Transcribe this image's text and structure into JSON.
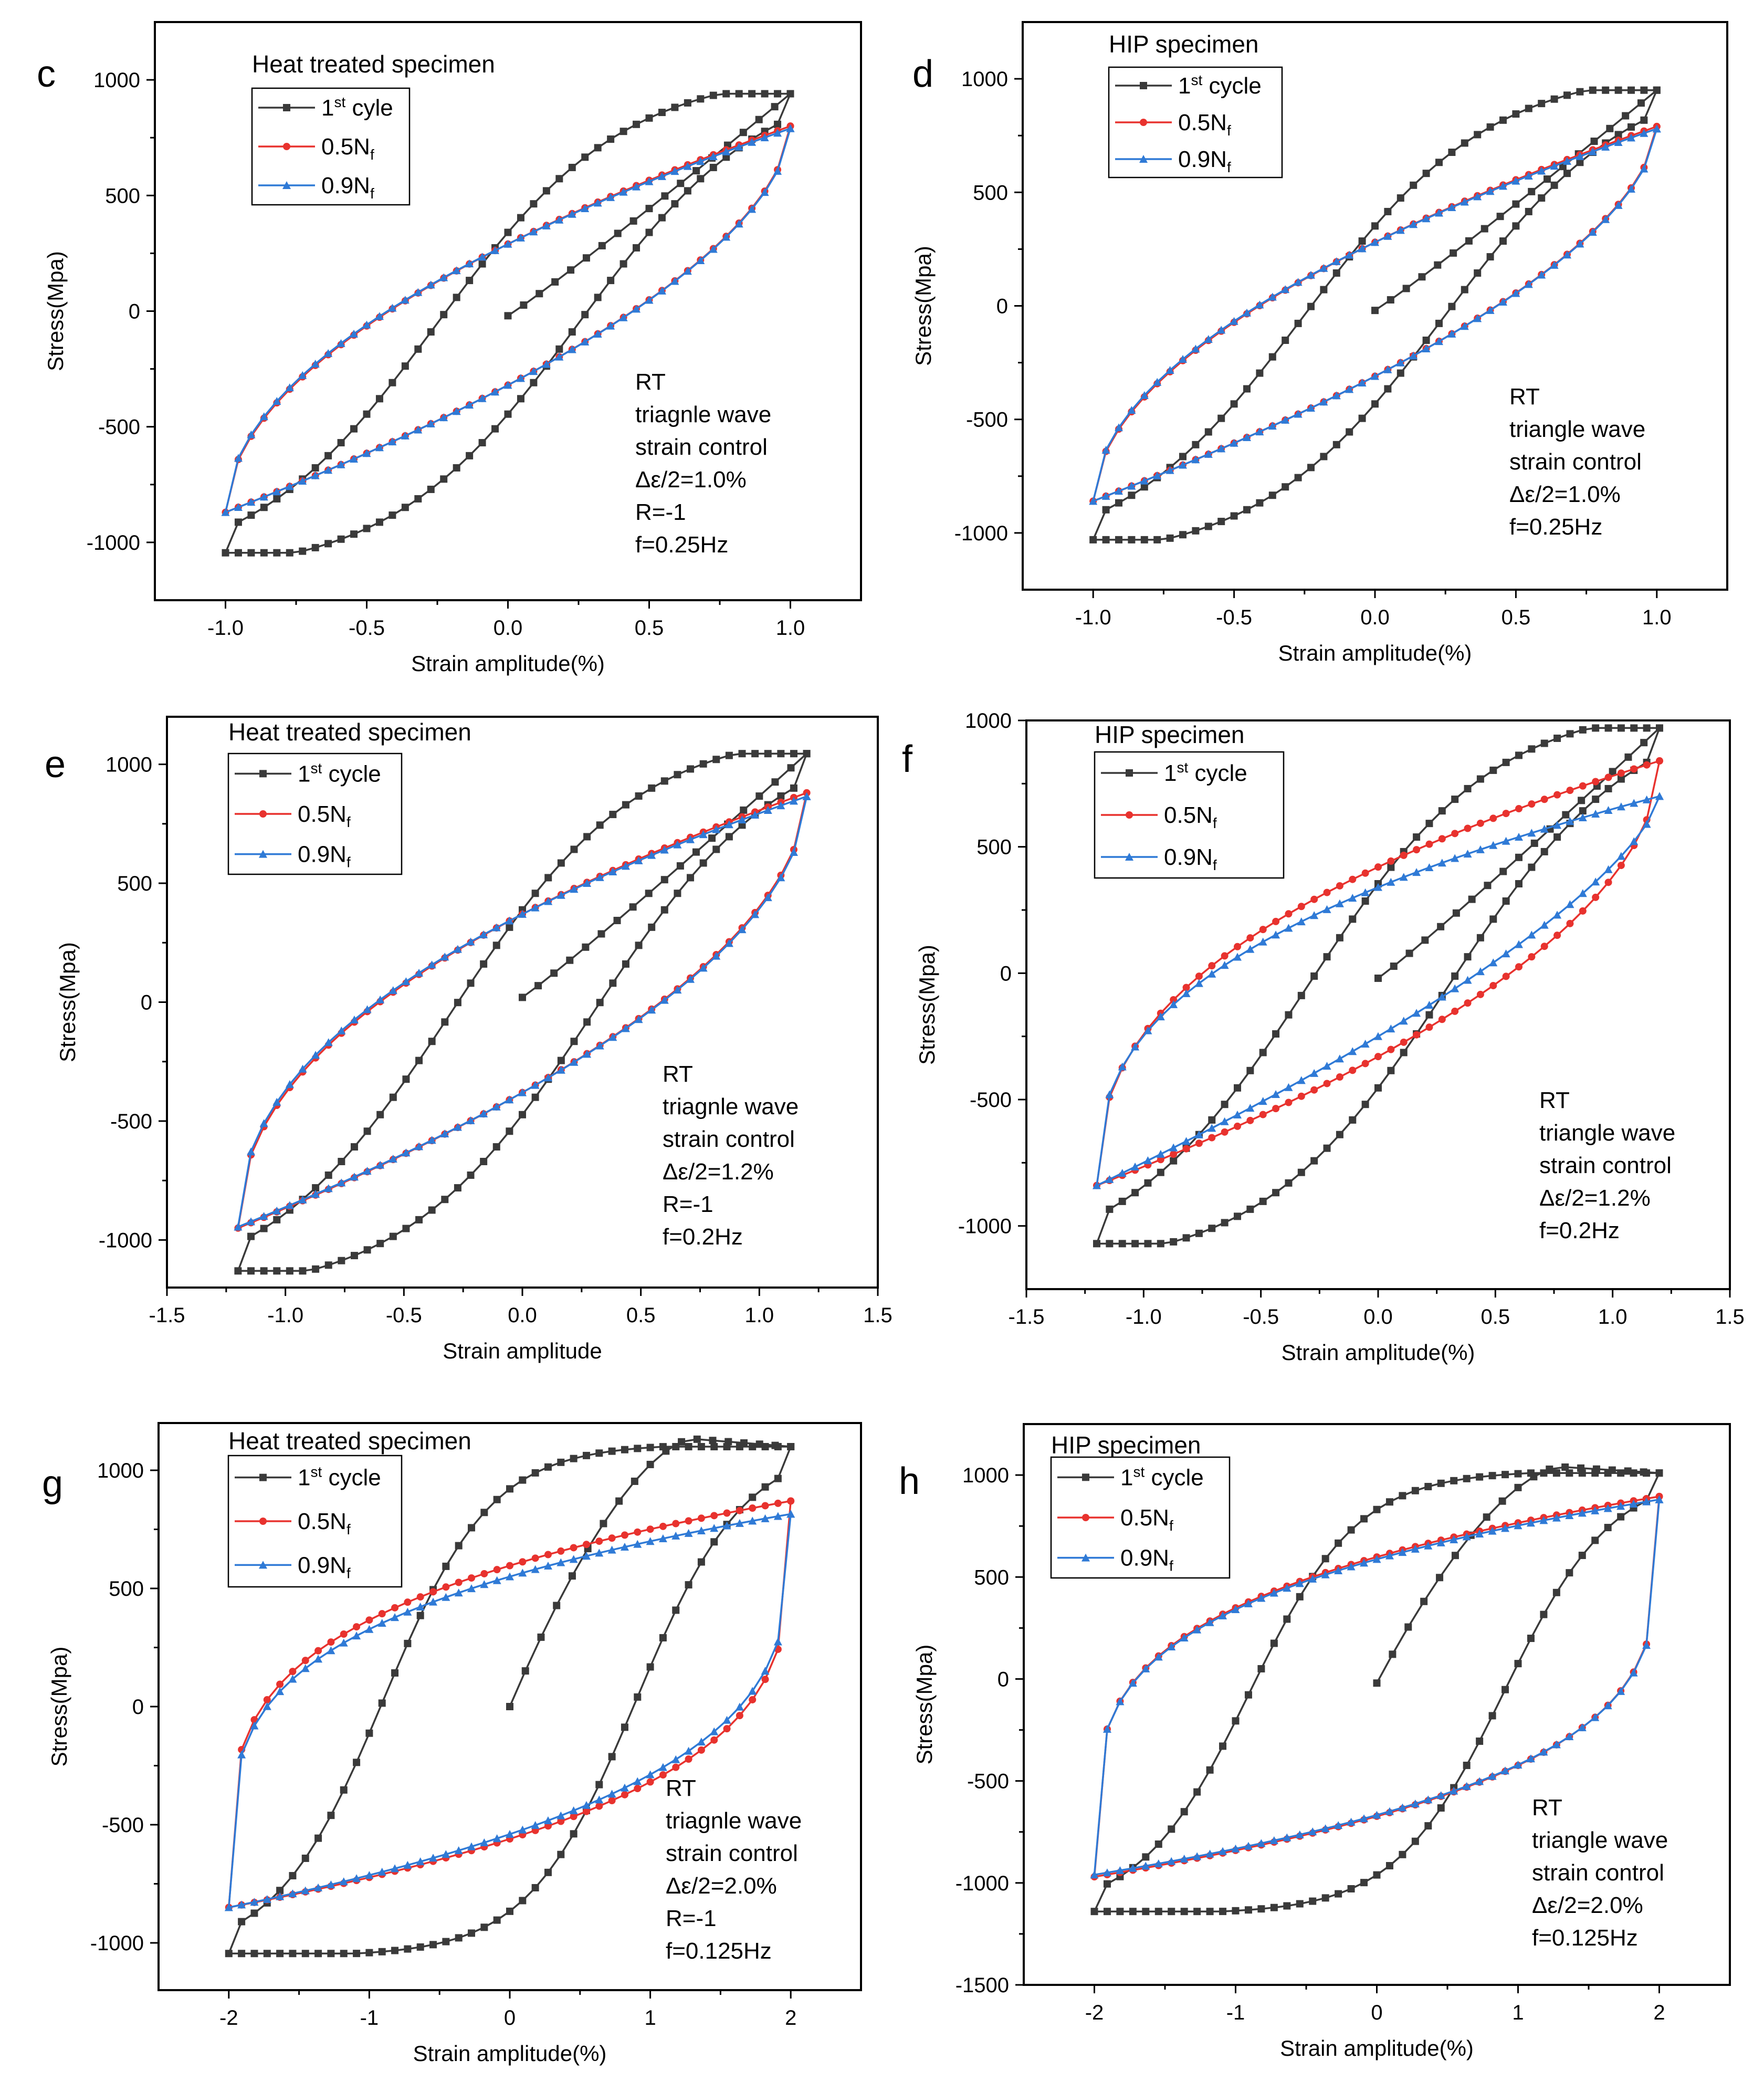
{
  "colors": {
    "cycle1": "#3a3a3a",
    "half": "#e8322e",
    "ninety": "#2f7ad6"
  },
  "chart_data": [
    {
      "type": "line",
      "panel": "c",
      "title": "Heat treated specimen",
      "xlabel": "Strain amplitude(%)",
      "ylabel": "Stress(Mpa)",
      "xlim": [
        -1.25,
        1.25
      ],
      "ylim": [
        -1250,
        1250
      ],
      "xticks": [
        "-1.0",
        "-0.5",
        "0.0",
        "0.5",
        "1.0"
      ],
      "xtick_values": [
        -1,
        -0.5,
        0,
        0.5,
        1
      ],
      "yticks": [
        "-1000",
        "-500",
        "0",
        "500",
        "1000"
      ],
      "ytick_values": [
        -1000,
        -500,
        0,
        500,
        1000
      ],
      "legend": [
        {
          "base": "1",
          "sup": "st",
          "rest": " cyle"
        },
        {
          "base": "0.5N",
          "sub": "f"
        },
        {
          "base": "0.9N",
          "sub": "f"
        }
      ],
      "annotation": [
        "RT",
        "triagnle wave",
        "strain control",
        "Δε/2=1.0%",
        "R=-1",
        "f=0.25Hz"
      ],
      "series": [
        {
          "name": "1st cyle",
          "amp": 1.0,
          "start": [
            0,
            -20
          ],
          "peak": 940,
          "valley": -1045,
          "kind": "c1"
        },
        {
          "name": "0.5Nf",
          "amp": 1.0,
          "peak": 800,
          "valley": -870,
          "hc": 290,
          "hd": -320
        },
        {
          "name": "0.9Nf",
          "amp": 1.0,
          "peak": 790,
          "valley": -870,
          "hc": 290,
          "hd": -320
        }
      ]
    },
    {
      "type": "line",
      "panel": "d",
      "title": "HIP specimen",
      "xlabel": "Strain amplitude(%)",
      "ylabel": "Stress(Mpa)",
      "xlim": [
        -1.25,
        1.25
      ],
      "ylim": [
        -1250,
        1250
      ],
      "xticks": [
        "-1.0",
        "-0.5",
        "0.0",
        "0.5",
        "1.0"
      ],
      "xtick_values": [
        -1,
        -0.5,
        0,
        0.5,
        1
      ],
      "yticks": [
        "-1000",
        "-500",
        "0",
        "500",
        "1000"
      ],
      "ytick_values": [
        -1000,
        -500,
        0,
        500,
        1000
      ],
      "legend": [
        {
          "base": "1",
          "sup": "st",
          "rest": " cycle"
        },
        {
          "base": "0.5N",
          "sub": "f"
        },
        {
          "base": "0.9N",
          "sub": "f"
        }
      ],
      "annotation": [
        "RT",
        "triangle wave",
        "strain control",
        "Δε/2=1.0%",
        "f=0.25Hz"
      ],
      "series": [
        {
          "name": "1st cycle",
          "amp": 1.0,
          "start": [
            0,
            -20
          ],
          "peak": 950,
          "valley": -1030,
          "kind": "c1"
        },
        {
          "name": "0.5Nf",
          "amp": 1.0,
          "peak": 790,
          "valley": -860,
          "hc": 280,
          "hd": -310
        },
        {
          "name": "0.9Nf",
          "amp": 1.0,
          "peak": 780,
          "valley": -860,
          "hc": 280,
          "hd": -310
        }
      ]
    },
    {
      "type": "line",
      "panel": "e",
      "title": "Heat treated specimen",
      "xlabel": "Strain amplitude",
      "ylabel": "Stress(Mpa)",
      "xlim": [
        -1.5,
        1.5
      ],
      "ylim": [
        -1200,
        1200
      ],
      "xticks": [
        "-1.5",
        "-1.0",
        "-0.5",
        "0.0",
        "0.5",
        "1.0",
        "1.5"
      ],
      "xtick_values": [
        -1.5,
        -1,
        -0.5,
        0,
        0.5,
        1,
        1.5
      ],
      "yticks": [
        "-1000",
        "-500",
        "0",
        "500",
        "1000"
      ],
      "ytick_values": [
        -1000,
        -500,
        0,
        500,
        1000
      ],
      "legend": [
        {
          "base": "1",
          "sup": "st",
          "rest": " cycle"
        },
        {
          "base": "0.5N",
          "sub": "f"
        },
        {
          "base": "0.9N",
          "sub": "f"
        }
      ],
      "annotation": [
        "RT",
        "triagnle wave",
        "strain control",
        "Δε/2=1.2%",
        "R=-1",
        "f=0.2Hz"
      ],
      "series": [
        {
          "name": "1st cycle",
          "amp": 1.2,
          "start": [
            0,
            20
          ],
          "peak": 1045,
          "valley": -1130,
          "kind": "c1"
        },
        {
          "name": "0.5Nf",
          "amp": 1.2,
          "peak": 880,
          "valley": -950,
          "hc": 370,
          "hd": -380
        },
        {
          "name": "0.9Nf",
          "amp": 1.2,
          "peak": 865,
          "valley": -945,
          "hc": 370,
          "hd": -380
        }
      ]
    },
    {
      "type": "line",
      "panel": "f",
      "title": "HIP specimen",
      "xlabel": "Strain amplitude(%)",
      "ylabel": "Stress(Mpa)",
      "xlim": [
        -1.5,
        1.5
      ],
      "ylim": [
        -1250,
        1000
      ],
      "xticks": [
        "-1.5",
        "-1.0",
        "-0.5",
        "0.0",
        "0.5",
        "1.0",
        "1.5"
      ],
      "xtick_values": [
        -1.5,
        -1,
        -0.5,
        0,
        0.5,
        1,
        1.5
      ],
      "yticks": [
        "-1000",
        "-500",
        "0",
        "500",
        "1000"
      ],
      "ytick_values": [
        -1000,
        -500,
        0,
        500,
        1000
      ],
      "legend": [
        {
          "base": "1",
          "sup": "st",
          "rest": " cycle"
        },
        {
          "base": "0.5N",
          "sub": "f"
        },
        {
          "base": "0.9N",
          "sub": "f"
        }
      ],
      "annotation": [
        "RT",
        "triangle wave",
        "strain control",
        "Δε/2=1.2%",
        "f=0.2Hz"
      ],
      "series": [
        {
          "name": "1st cycle",
          "amp": 1.2,
          "start": [
            0,
            -20
          ],
          "peak": 970,
          "valley": -1070,
          "kind": "c1"
        },
        {
          "name": "0.5Nf",
          "amp": 1.2,
          "peak": 840,
          "valley": -840,
          "hc": 420,
          "hd": -330
        },
        {
          "name": "0.9Nf",
          "amp": 1.2,
          "peak": 700,
          "valley": -840,
          "hc": 340,
          "hd": -250
        }
      ]
    },
    {
      "type": "line",
      "panel": "g",
      "title": "Heat treated specimen",
      "xlabel": "Strain amplitude(%)",
      "ylabel": "Stress(Mpa)",
      "xlim": [
        -2.5,
        2.5
      ],
      "ylim": [
        -1200,
        1200
      ],
      "xticks": [
        "-2",
        "-1",
        "0",
        "1",
        "2"
      ],
      "xtick_values": [
        -2,
        -1,
        0,
        1,
        2
      ],
      "yticks": [
        "-1000",
        "-500",
        "0",
        "500",
        "1000"
      ],
      "ytick_values": [
        -1000,
        -500,
        0,
        500,
        1000
      ],
      "legend": [
        {
          "base": "1",
          "sup": "st",
          "rest": " cycle"
        },
        {
          "base": "0.5N",
          "sub": "f"
        },
        {
          "base": "0.9N",
          "sub": "f"
        }
      ],
      "annotation": [
        "RT",
        "triagnle wave",
        "strain control",
        "Δε/2=2.0%",
        "R=-1",
        "f=0.125Hz"
      ],
      "series": [
        {
          "name": "1st cycle",
          "amp": 2.0,
          "start": [
            0,
            0
          ],
          "peak": 1100,
          "valley": -1045,
          "kind": "c1big"
        },
        {
          "name": "0.5Nf",
          "amp": 2.0,
          "peak": 870,
          "valley": -850,
          "hc": 700,
          "hd": -560,
          "kind": "big"
        },
        {
          "name": "0.9Nf",
          "amp": 2.0,
          "peak": 815,
          "valley": -850,
          "hc": 680,
          "hd": -540,
          "kind": "big"
        }
      ]
    },
    {
      "type": "line",
      "panel": "h",
      "title": "HIP specimen",
      "xlabel": "Strain amplitude(%)",
      "ylabel": "Stress(Mpa)",
      "xlim": [
        -2.5,
        2.5
      ],
      "ylim": [
        -1500,
        1250
      ],
      "xticks": [
        "-2",
        "-1",
        "0",
        "1",
        "2"
      ],
      "xtick_values": [
        -2,
        -1,
        0,
        1,
        2
      ],
      "yticks": [
        "-1500",
        "-1000",
        "-500",
        "0",
        "500",
        "1000"
      ],
      "ytick_values": [
        -1500,
        -1000,
        -500,
        0,
        500,
        1000
      ],
      "legend": [
        {
          "base": "1",
          "sup": "st",
          "rest": " cycle"
        },
        {
          "base": "0.5N",
          "sub": "f"
        },
        {
          "base": "0.9N",
          "sub": "f"
        }
      ],
      "annotation": [
        "RT",
        "triangle wave",
        "strain control",
        "Δε/2=2.0%",
        "f=0.125Hz"
      ],
      "series": [
        {
          "name": "1st cycle",
          "amp": 2.0,
          "start": [
            0,
            -20
          ],
          "peak": 1010,
          "valley": -1140,
          "kind": "c1big"
        },
        {
          "name": "0.5Nf",
          "amp": 2.0,
          "peak": 895,
          "valley": -970,
          "hc": 710,
          "hd": -700,
          "kind": "big"
        },
        {
          "name": "0.9Nf",
          "amp": 2.0,
          "peak": 880,
          "valley": -960,
          "hc": 700,
          "hd": -690,
          "kind": "big"
        }
      ]
    }
  ]
}
